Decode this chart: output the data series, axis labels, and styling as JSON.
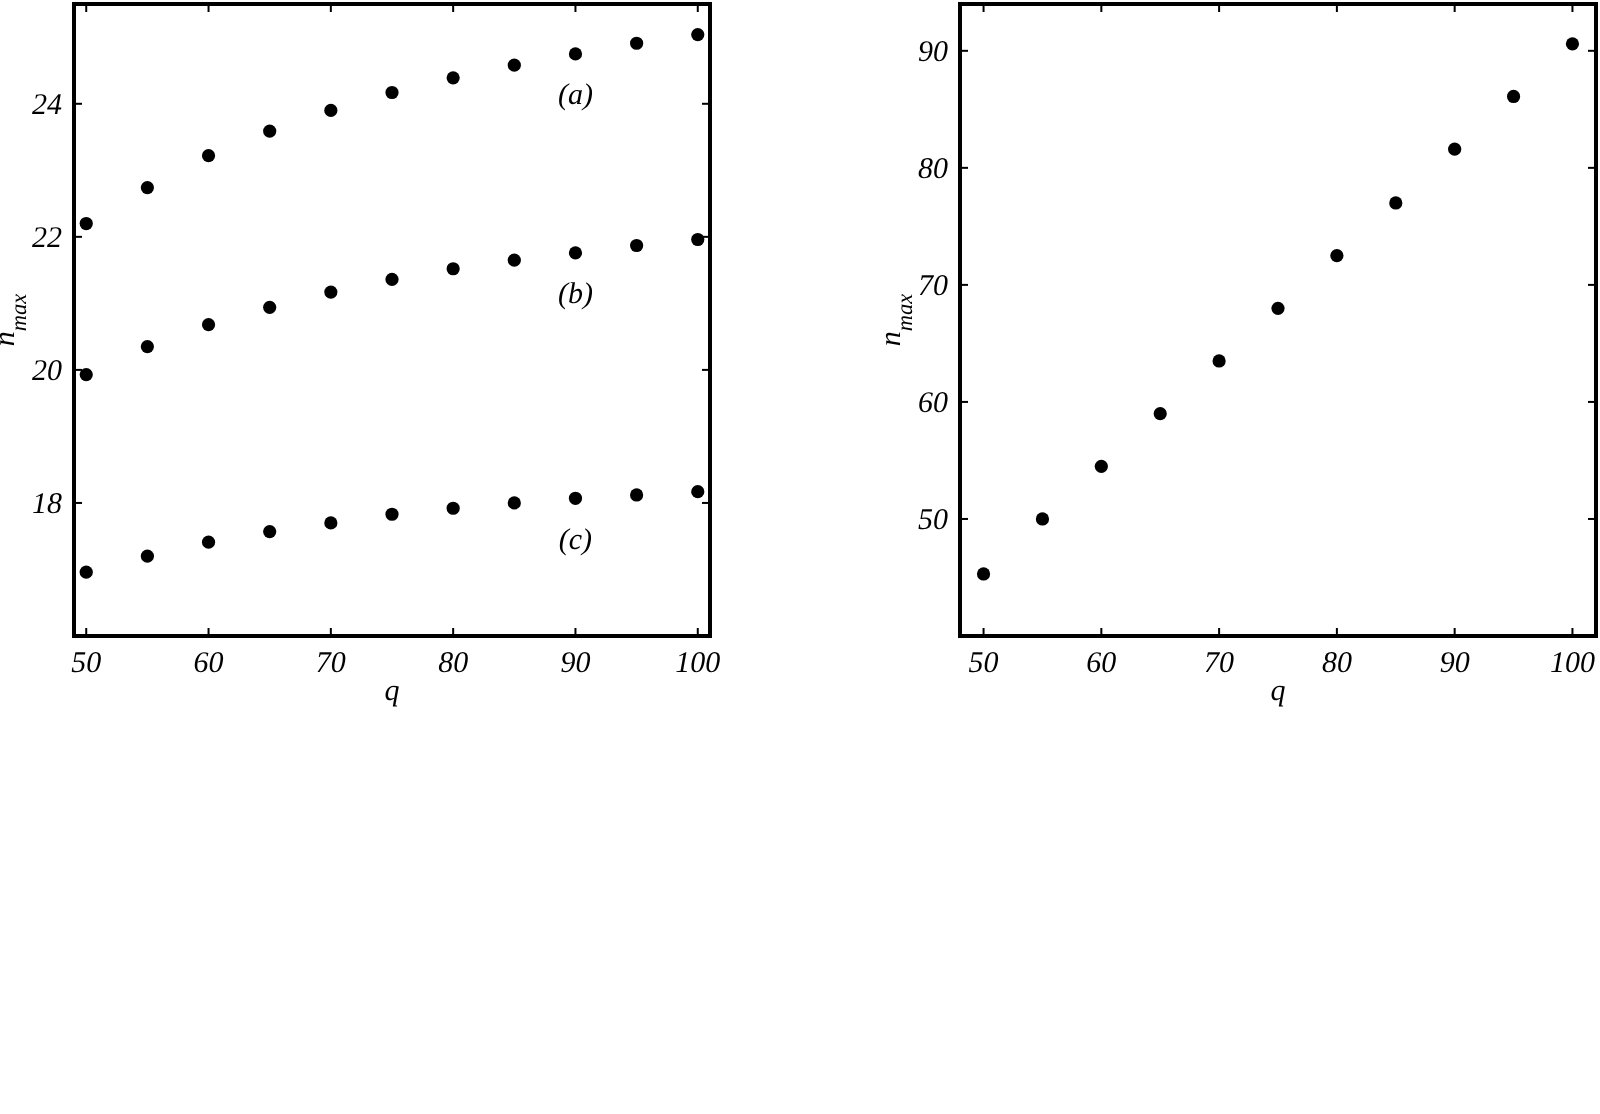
{
  "chart_data": [
    {
      "type": "scatter",
      "xlabel": "q",
      "ylabel": "n$_{max}$",
      "marker": "circle",
      "x": [
        50,
        55,
        60,
        65,
        70,
        75,
        80,
        85,
        90,
        95,
        100
      ],
      "xlim": [
        49,
        101
      ],
      "ylim": [
        16,
        25.5
      ],
      "xticks": [
        50,
        60,
        70,
        80,
        90,
        100
      ],
      "yticks": [
        18,
        20,
        22,
        24
      ],
      "series": [
        {
          "name": "(a)",
          "color": "#000000",
          "values": [
            22.2,
            22.74,
            23.22,
            23.59,
            23.9,
            24.17,
            24.39,
            24.58,
            24.75,
            24.91,
            25.04
          ]
        },
        {
          "name": "(b)",
          "color": "#000000",
          "values": [
            19.93,
            20.35,
            20.68,
            20.94,
            21.17,
            21.36,
            21.52,
            21.65,
            21.76,
            21.87,
            21.96
          ]
        },
        {
          "name": "(c)",
          "color": "#000000",
          "values": [
            16.96,
            17.2,
            17.41,
            17.57,
            17.7,
            17.83,
            17.92,
            18.0,
            18.07,
            18.12,
            18.17
          ]
        }
      ]
    },
    {
      "type": "scatter",
      "xlabel": "q",
      "ylabel": "n$_{max}$",
      "marker": "circle",
      "x": [
        50,
        55,
        60,
        65,
        70,
        75,
        80,
        85,
        90,
        95,
        100
      ],
      "xlim": [
        48,
        102
      ],
      "ylim": [
        40,
        94
      ],
      "xticks": [
        50,
        60,
        70,
        80,
        90,
        100
      ],
      "yticks": [
        50,
        60,
        70,
        80,
        90
      ],
      "series": [
        {
          "color": "#000000",
          "values": [
            45.3,
            50.0,
            54.5,
            59.0,
            63.5,
            68.0,
            72.5,
            77.0,
            81.6,
            86.1,
            90.6
          ]
        }
      ]
    }
  ]
}
